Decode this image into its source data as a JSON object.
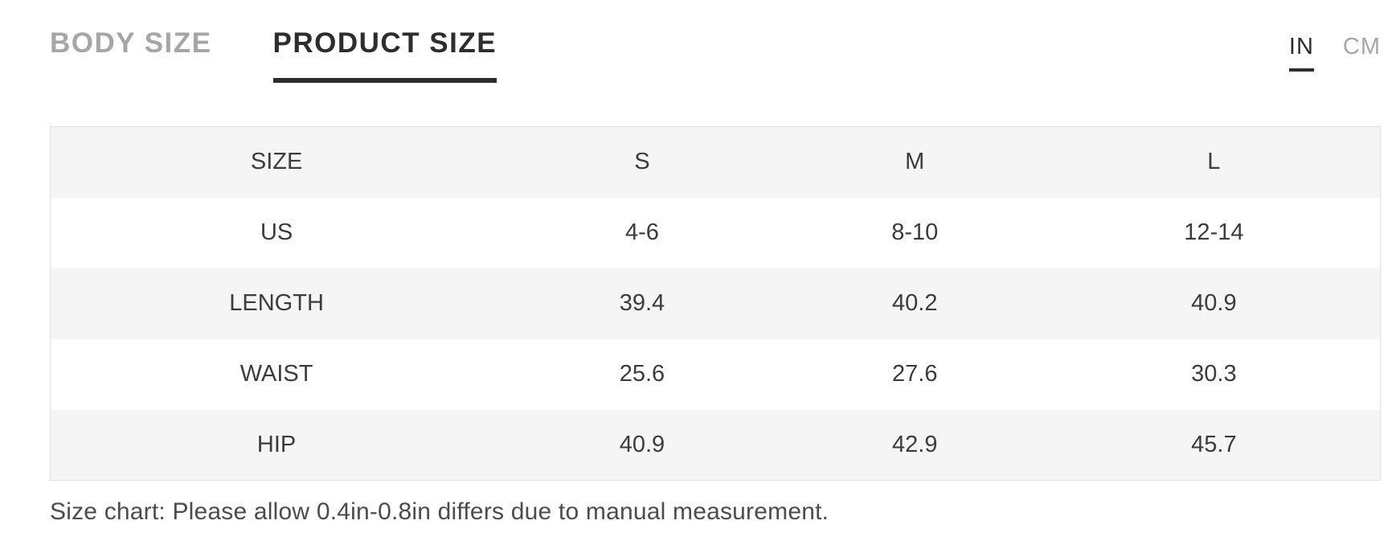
{
  "tabs": [
    {
      "label": "BODY SIZE",
      "active": false
    },
    {
      "label": "PRODUCT SIZE",
      "active": true
    }
  ],
  "units": [
    {
      "label": "IN",
      "active": true
    },
    {
      "label": "CM",
      "active": false
    }
  ],
  "table": {
    "headers": [
      "SIZE",
      "S",
      "M",
      "L"
    ],
    "rows": [
      {
        "label": "US",
        "values": [
          "4-6",
          "8-10",
          "12-14"
        ]
      },
      {
        "label": "LENGTH",
        "values": [
          "39.4",
          "40.2",
          "40.9"
        ]
      },
      {
        "label": "WAIST",
        "values": [
          "25.6",
          "27.6",
          "30.3"
        ]
      },
      {
        "label": "HIP",
        "values": [
          "40.9",
          "42.9",
          "45.7"
        ]
      }
    ]
  },
  "note": "Size chart: Please allow 0.4in-0.8in differs due to manual measurement."
}
